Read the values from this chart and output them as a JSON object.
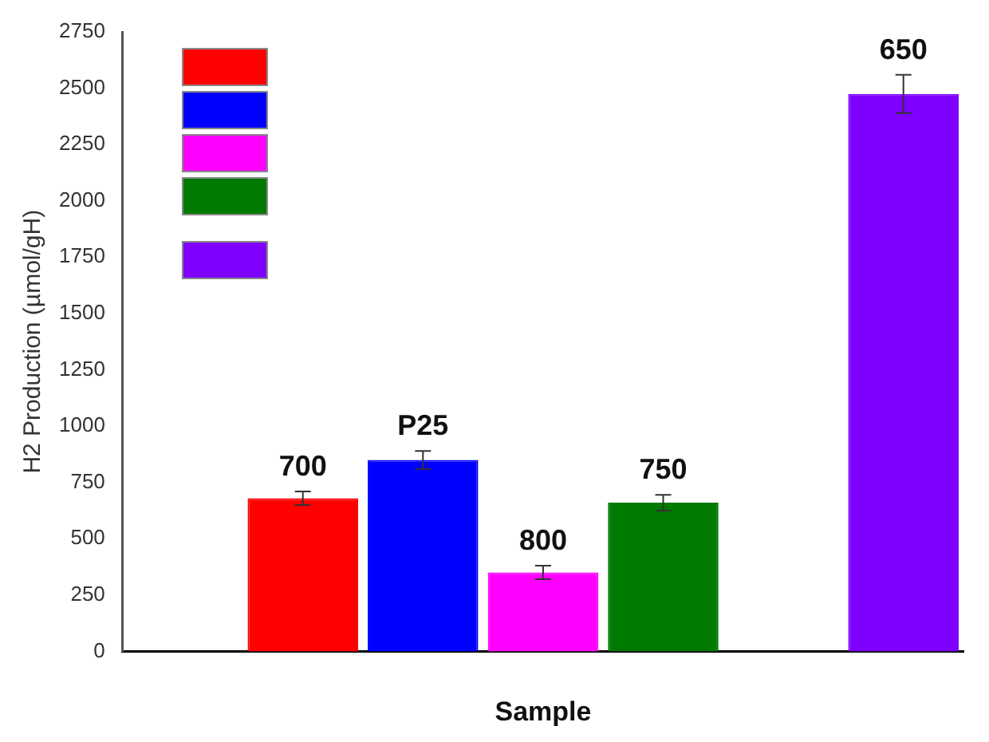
{
  "chart_data": {
    "type": "bar",
    "xlabel": "Sample",
    "ylabel": "H2 Production (µmol/gH)",
    "categories": [
      null,
      null,
      null,
      null,
      null,
      null,
      null
    ],
    "series": [
      {
        "name": "700",
        "color": "#ff0000",
        "values": [
          null,
          680,
          null,
          null,
          null,
          null,
          null
        ],
        "errors": [
          null,
          30,
          null,
          null,
          null,
          null,
          null
        ]
      },
      {
        "name": "P25",
        "color": "#0000ff",
        "values": [
          null,
          null,
          850,
          null,
          null,
          null,
          null
        ],
        "errors": [
          null,
          null,
          40,
          null,
          null,
          null,
          null
        ]
      },
      {
        "name": "800",
        "color": "#ff00ff",
        "values": [
          null,
          null,
          null,
          350,
          null,
          null,
          null
        ],
        "errors": [
          null,
          null,
          null,
          30,
          null,
          null,
          null
        ]
      },
      {
        "name": "750",
        "color": "#007a00",
        "values": [
          null,
          null,
          null,
          null,
          660,
          null,
          null
        ],
        "errors": [
          null,
          null,
          null,
          null,
          35,
          null,
          null
        ]
      },
      {
        "name": "650",
        "color": "#7f00ff",
        "values": [
          null,
          null,
          null,
          null,
          null,
          null,
          2475
        ],
        "errors": [
          null,
          null,
          null,
          null,
          null,
          null,
          85
        ]
      }
    ],
    "ylim": [
      0,
      2750
    ],
    "yticks": [
      0,
      250,
      500,
      750,
      1000,
      1250,
      1500,
      1750,
      2000,
      2250,
      2500,
      2750
    ],
    "grid": false
  }
}
